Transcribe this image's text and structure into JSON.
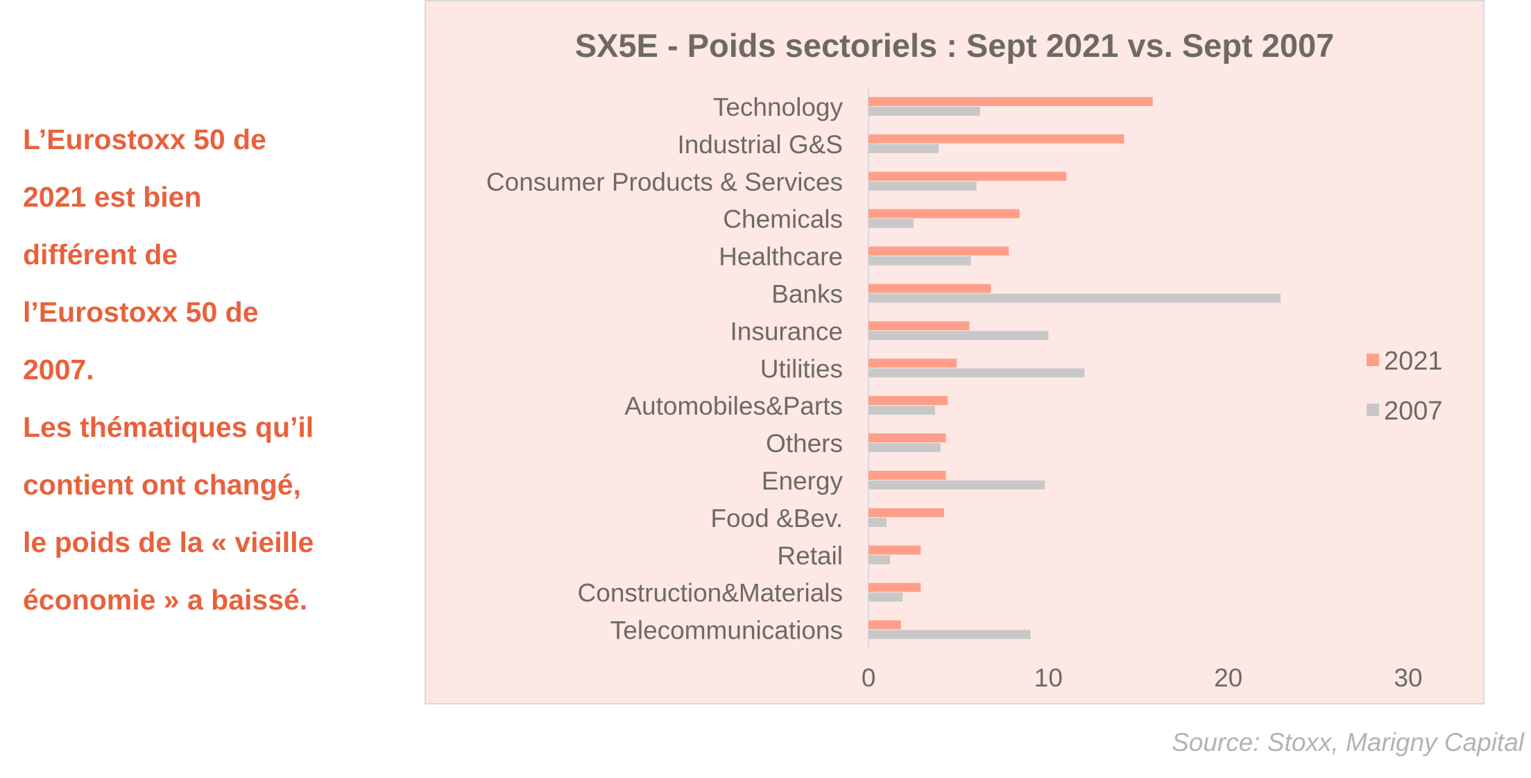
{
  "side_text": {
    "lines": [
      "L’Eurostoxx 50 de",
      "2021 est bien",
      "différent de",
      "l’Eurostoxx 50 de",
      "2007.",
      "Les thématiques qu’il",
      "contient ont changé,",
      "le poids de la « vieille",
      "économie » a baissé."
    ]
  },
  "chart_data": {
    "type": "bar",
    "orientation": "horizontal",
    "title": "SX5E - Poids sectoriels : Sept 2021 vs. Sept 2007",
    "categories": [
      "Technology",
      "Industrial G&S",
      "Consumer Products & Services",
      "Chemicals",
      "Healthcare",
      "Banks",
      "Insurance",
      "Utilities",
      "Automobiles&Parts",
      "Others",
      "Energy",
      "Food &Bev.",
      "Retail",
      "Construction&Materials",
      "Telecommunications"
    ],
    "series": [
      {
        "name": "2021",
        "color": "#ff9f8a",
        "values": [
          15.8,
          14.2,
          11.0,
          8.4,
          7.8,
          6.8,
          5.6,
          4.9,
          4.4,
          4.3,
          4.3,
          4.2,
          2.9,
          2.9,
          1.8
        ]
      },
      {
        "name": "2007",
        "color": "#c8c8c8",
        "values": [
          6.2,
          3.9,
          6.0,
          2.5,
          5.7,
          22.9,
          10.0,
          12.0,
          3.7,
          4.0,
          9.8,
          1.0,
          1.2,
          1.9,
          9.0
        ]
      }
    ],
    "xlim": [
      0,
      30
    ],
    "xticks": [
      "0",
      "10",
      "20",
      "30"
    ],
    "legend_position": "right",
    "grid": false
  },
  "source": "Source: Stoxx, Marigny Capital"
}
